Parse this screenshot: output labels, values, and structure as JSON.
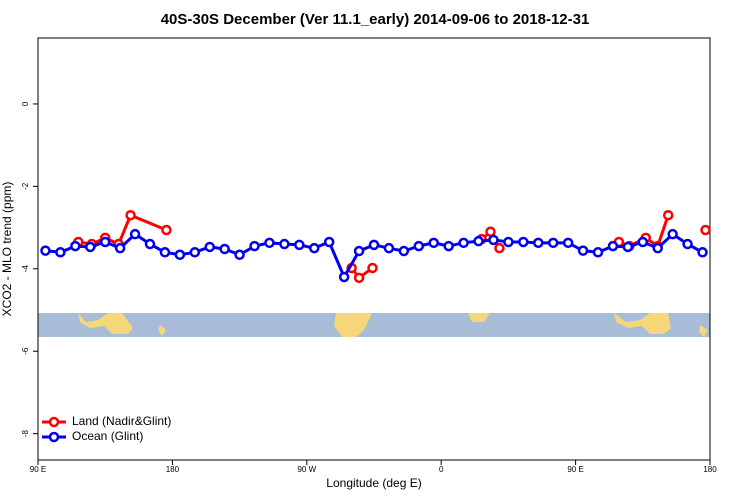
{
  "chart_data": {
    "type": "line",
    "title": "40S-30S December (Ver 11.1_early)   2014-09-06 to 2018-12-31",
    "x_label": "Longitude (deg E)",
    "y_label": "XCO2 - MLO trend (ppm)",
    "xlim": [
      90,
      540
    ],
    "ylim": [
      -8.64,
      1.6
    ],
    "xticks": [
      {
        "value": 90,
        "label": "90 E"
      },
      180,
      {
        "value": 270,
        "label": "90 W"
      },
      {
        "value": 360,
        "label": "0"
      },
      {
        "value": 450,
        "label": "90 E"
      },
      {
        "value": 540,
        "label": "180"
      }
    ],
    "yticks": [
      0,
      -2,
      -4,
      -6,
      -8
    ],
    "legend": "bottom-left",
    "series": [
      {
        "name": "Land (Nadir&Glint)",
        "color": "#ff0000",
        "x": [
          117,
          126,
          135,
          144,
          152,
          176,
          null,
          300,
          305,
          314,
          null,
          387,
          393,
          399,
          null,
          479,
          486,
          497,
          505,
          512,
          null,
          537
        ],
        "values": [
          -3.35,
          -3.4,
          -3.25,
          -3.4,
          -2.7,
          -3.06,
          null,
          -3.98,
          -4.22,
          -3.98,
          null,
          -3.28,
          -3.1,
          -3.5,
          null,
          -3.35,
          -3.45,
          -3.25,
          -3.45,
          -2.7,
          null,
          -3.06
        ]
      },
      {
        "name": "Ocean (Glint)",
        "color": "#0000ee",
        "x": [
          95,
          105,
          115,
          125,
          135,
          145,
          155,
          165,
          175,
          185,
          195,
          205,
          215,
          225,
          235,
          245,
          255,
          265,
          275,
          285,
          295,
          305,
          315,
          325,
          335,
          345,
          355,
          365,
          375,
          385,
          395,
          405,
          415,
          425,
          435,
          445,
          455,
          465,
          475,
          485,
          495,
          505,
          515,
          525,
          535
        ],
        "values": [
          -3.56,
          -3.6,
          -3.45,
          -3.47,
          -3.35,
          -3.5,
          -3.16,
          -3.4,
          -3.6,
          -3.66,
          -3.6,
          -3.47,
          -3.52,
          -3.66,
          -3.45,
          -3.37,
          -3.4,
          -3.42,
          -3.5,
          -3.35,
          -4.2,
          -3.57,
          -3.42,
          -3.5,
          -3.57,
          -3.45,
          -3.37,
          -3.45,
          -3.37,
          -3.33,
          -3.3,
          -3.35,
          -3.35,
          -3.37,
          -3.37,
          -3.37,
          -3.56,
          -3.6,
          -3.45,
          -3.47,
          -3.35,
          -3.5,
          -3.16,
          -3.4,
          -3.6
        ]
      }
    ]
  }
}
